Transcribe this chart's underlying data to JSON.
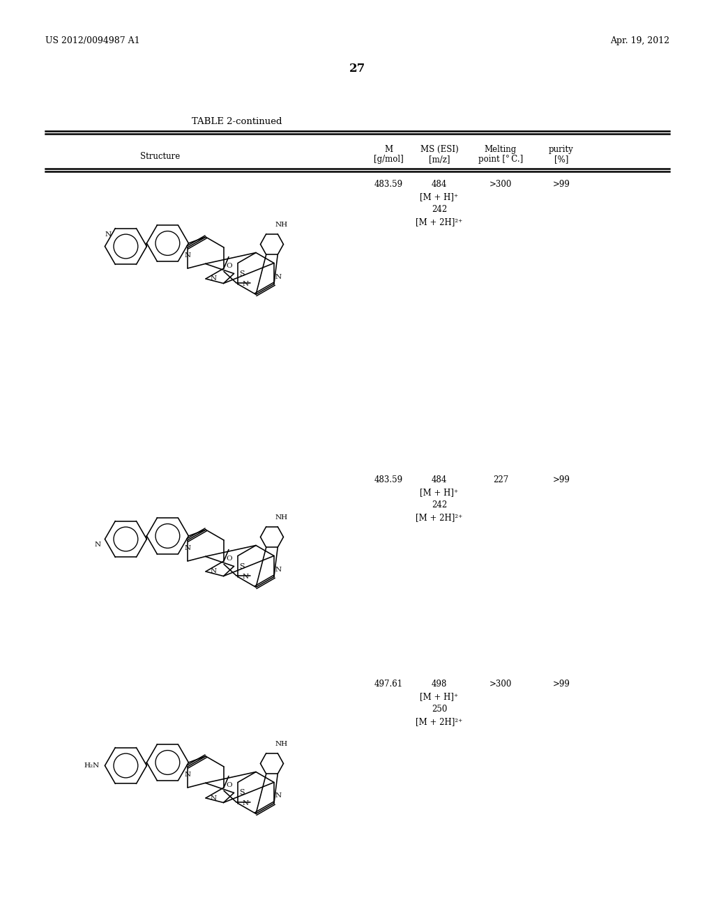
{
  "bg_color": "#ffffff",
  "header_left": "US 2012/0094987 A1",
  "header_right": "Apr. 19, 2012",
  "page_number": "27",
  "table_title": "TABLE 2-continued",
  "col_headers_line1": [
    "",
    "M",
    "MS (ESI)",
    "Melting",
    "purity"
  ],
  "col_headers_line2": [
    "Structure",
    "[g/mol]",
    "[m/z]",
    "point [° C.]",
    "[%]"
  ],
  "rows": [
    {
      "M": "483.59",
      "MS": "484\n[M + H]⁺\n242\n[M + 2H]²⁺",
      "melting": ">300",
      "purity": ">99"
    },
    {
      "M": "483.59",
      "MS": "484\n[M + H]⁺\n242\n[M + 2H]²⁺",
      "melting": "227",
      "purity": ">99"
    },
    {
      "M": "497.61",
      "MS": "498\n[M + H]⁺\n250\n[M + 2H]²⁺",
      "melting": ">300",
      "purity": ">99"
    }
  ]
}
